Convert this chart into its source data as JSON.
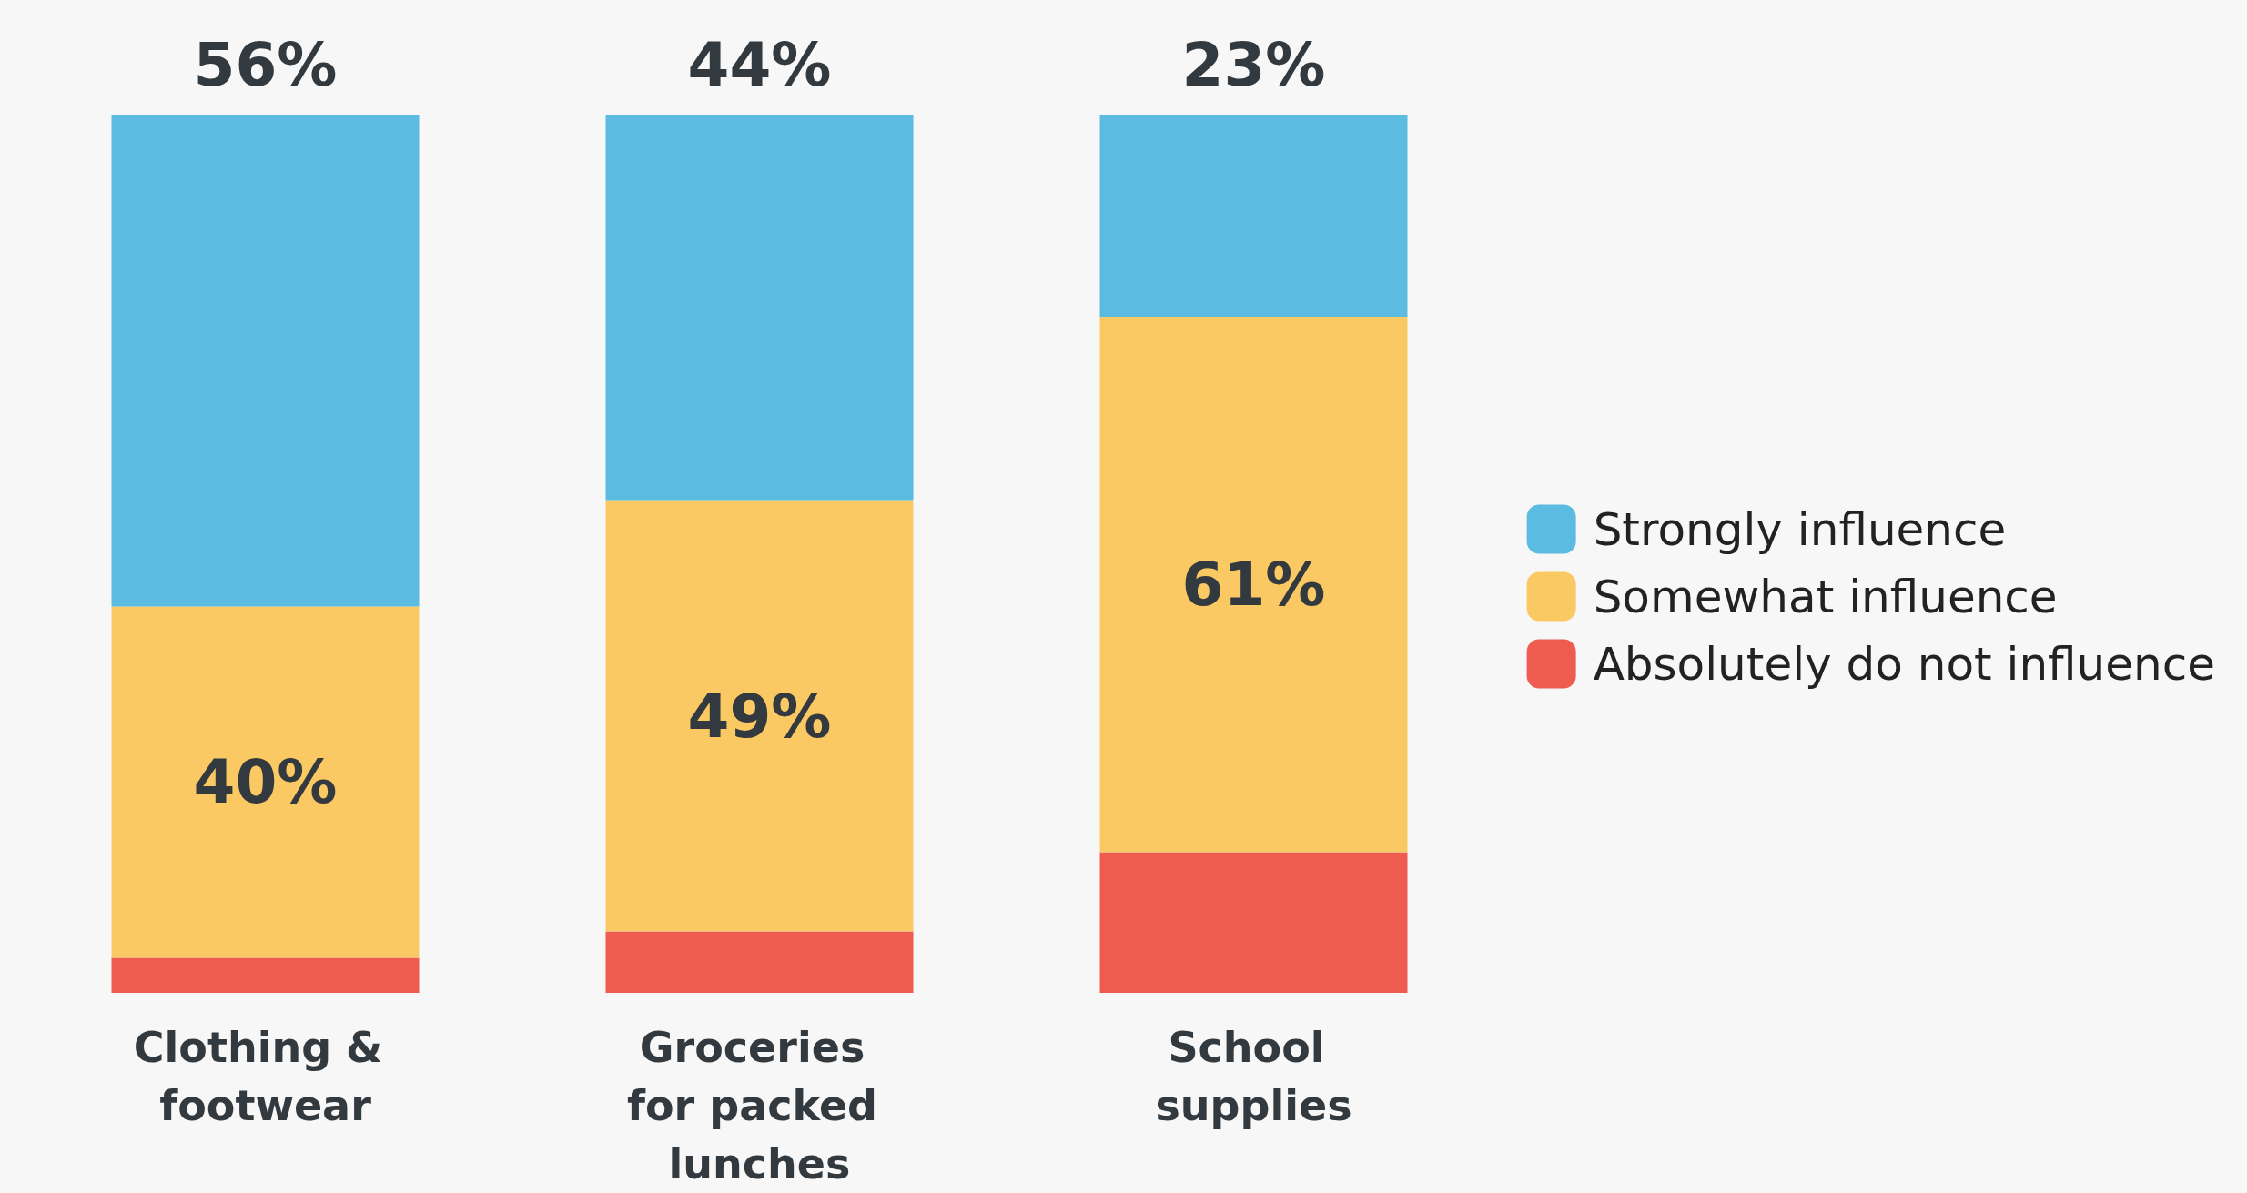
{
  "chart_data": {
    "type": "bar",
    "stacked": true,
    "categories": [
      "Clothing & footwear",
      "Groceries for packed lunches",
      "School supplies"
    ],
    "ylim": [
      0,
      100
    ],
    "legend": "right",
    "series": [
      {
        "name": "Absolutely do not influence",
        "color": "#ee5b4f",
        "values": [
          4,
          7,
          16
        ]
      },
      {
        "name": "Somewhat influence",
        "color": "#fbc964",
        "values": [
          40,
          49,
          61
        ],
        "value_labels": [
          "40%",
          "49%",
          "61%"
        ]
      },
      {
        "name": "Strongly influence",
        "color": "#5bbbe0",
        "values": [
          56,
          44,
          23
        ],
        "value_labels": [
          "56%",
          "44%",
          "23%"
        ]
      }
    ]
  }
}
